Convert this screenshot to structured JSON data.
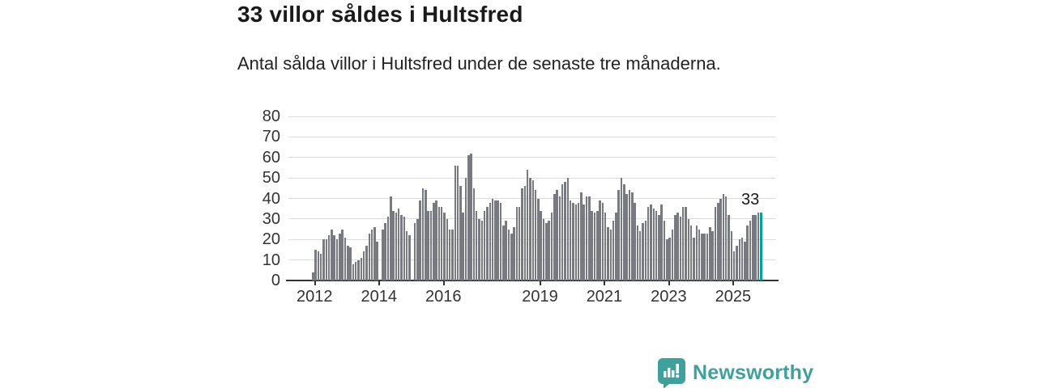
{
  "header": {
    "title": "33 villor såldes i Hultsfred",
    "subtitle": "Antal sålda villor i Hultsfred under de senaste tre månaderna."
  },
  "chart_data": {
    "type": "bar",
    "title": "33 villor såldes i Hultsfred",
    "subtitle": "Antal sålda villor i Hultsfred under de senaste tre månaderna.",
    "unit": "antal sålda villor (rullande tre månader)",
    "frequency": "monthly",
    "start_month": "2011-12",
    "end_month": "2025-11",
    "values": [
      4,
      15,
      14,
      13,
      20,
      20,
      22,
      25,
      22,
      20,
      23,
      25,
      21,
      17,
      16,
      8,
      9,
      10,
      11,
      14,
      17,
      23,
      25,
      26,
      19,
      null,
      25,
      28,
      31,
      41,
      34,
      33,
      35,
      32,
      31,
      24,
      22,
      null,
      28,
      30,
      39,
      45,
      44,
      34,
      34,
      38,
      39,
      36,
      36,
      33,
      30,
      25,
      25,
      56,
      56,
      46,
      33,
      50,
      61,
      62,
      45,
      34,
      30,
      29,
      34,
      36,
      38,
      40,
      39,
      39,
      38,
      27,
      29,
      25,
      23,
      26,
      36,
      36,
      45,
      46,
      54,
      50,
      49,
      44,
      40,
      34,
      30,
      28,
      29,
      33,
      42,
      44,
      41,
      47,
      48,
      50,
      39,
      38,
      37,
      38,
      43,
      37,
      41,
      41,
      34,
      33,
      34,
      39,
      38,
      33,
      26,
      25,
      29,
      33,
      44,
      50,
      47,
      42,
      44,
      43,
      38,
      27,
      24,
      28,
      29,
      36,
      37,
      35,
      34,
      32,
      37,
      29,
      20,
      21,
      25,
      32,
      33,
      31,
      36,
      36,
      30,
      27,
      21,
      27,
      25,
      23,
      23,
      23,
      26,
      24,
      36,
      38,
      40,
      42,
      41,
      32,
      24,
      14,
      17,
      20,
      21,
      19,
      27,
      29,
      32,
      32,
      33,
      33
    ],
    "ylim": [
      0,
      80
    ],
    "yticks": [
      0,
      10,
      20,
      30,
      40,
      50,
      60,
      70,
      80
    ],
    "xticks": [
      {
        "label": "2012",
        "index": 1
      },
      {
        "label": "2014",
        "index": 25
      },
      {
        "label": "2016",
        "index": 49
      },
      {
        "label": "2019",
        "index": 85
      },
      {
        "label": "2021",
        "index": 109
      },
      {
        "label": "2023",
        "index": 133
      },
      {
        "label": "2025",
        "index": 157
      }
    ],
    "grid": "horizontal",
    "legend": "none",
    "bar_color": "#797981",
    "highlight": {
      "index": 167,
      "value": 33,
      "label": "33",
      "color": "#00a19c"
    }
  },
  "footer": {
    "brand": "Newsworthy",
    "brand_color": "#3fa09c",
    "logo_icon": "newsworthy-speech-bubble-bars"
  },
  "colors": {
    "grid": "#dcdcdc",
    "axis": "#333333",
    "text": "#1a1a1a"
  }
}
